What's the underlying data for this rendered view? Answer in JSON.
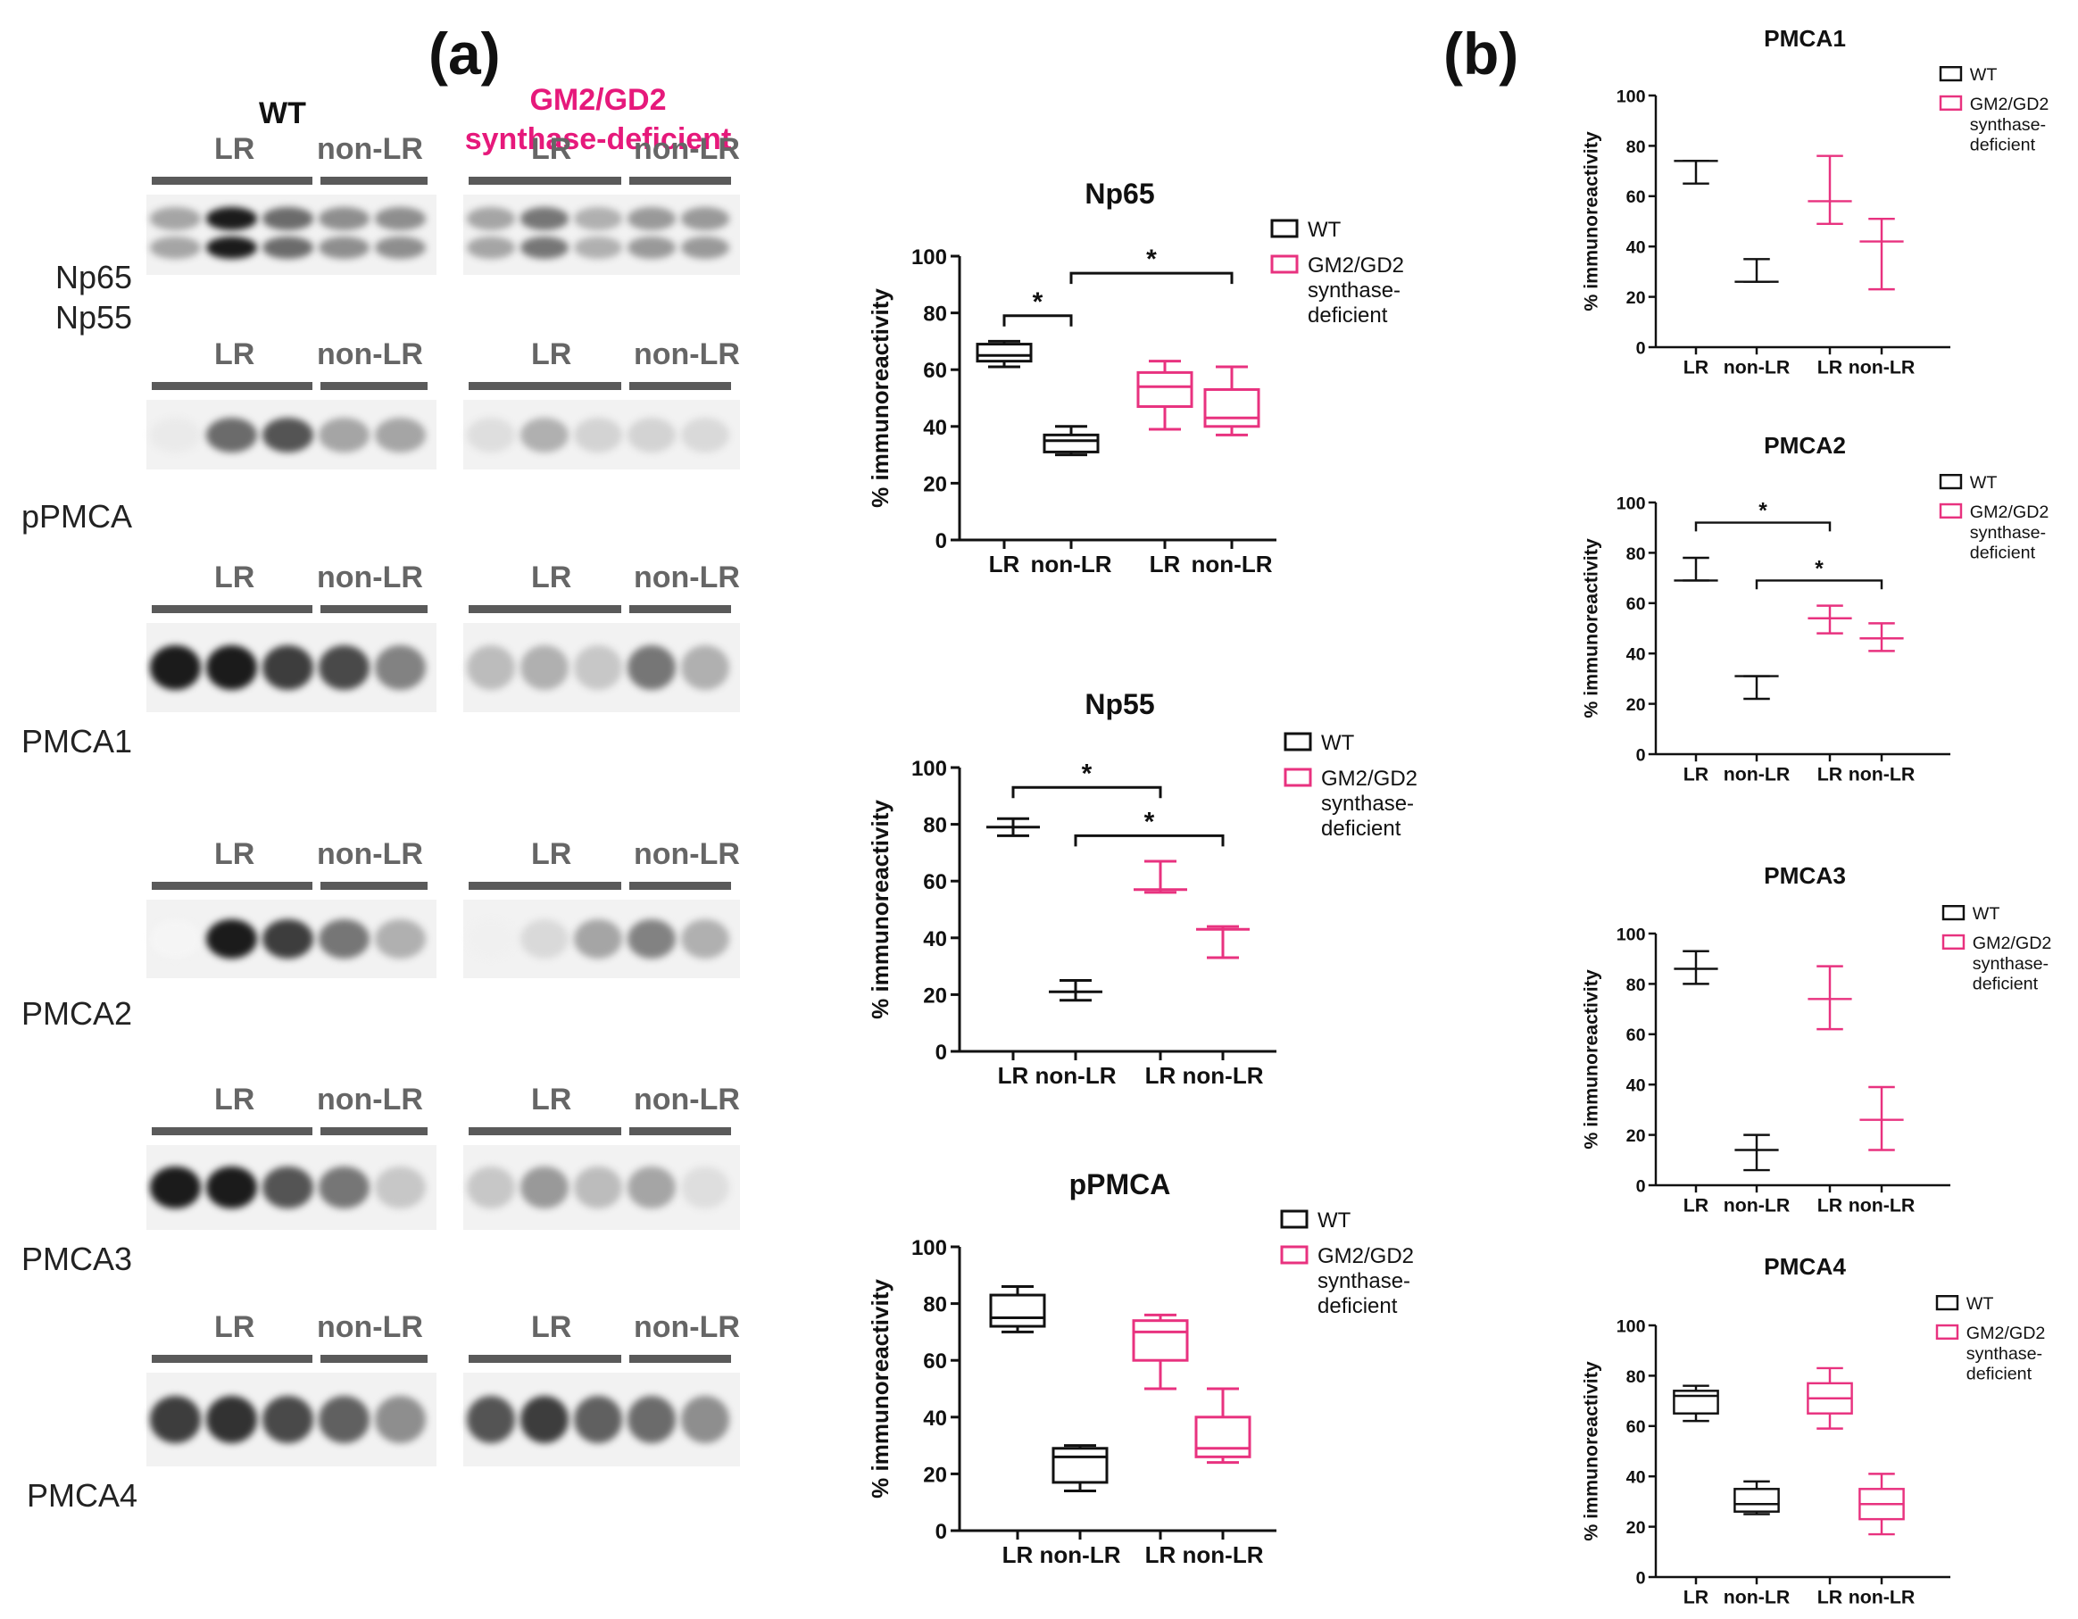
{
  "panel_a_letter": "(a)",
  "panel_b_letter": "(b)",
  "blot_headers": {
    "wt": "WT",
    "ko_line1": "GM2/GD2",
    "ko_line2": "synthase-deficient"
  },
  "blot_lane_labels": {
    "lr": "LR",
    "nonlr": "non-LR"
  },
  "blot_rows": [
    {
      "labels": [
        "Np65",
        "Np55"
      ]
    },
    {
      "labels": [
        "pPMCA"
      ]
    },
    {
      "labels": [
        "PMCA1"
      ]
    },
    {
      "labels": [
        "PMCA2"
      ]
    },
    {
      "labels": [
        "PMCA3"
      ]
    },
    {
      "labels": [
        "PMCA4"
      ]
    }
  ],
  "legend": {
    "wt": "WT",
    "ko_line1": "GM2/GD2",
    "ko_line2": "synthase-",
    "ko_line3": "deficient"
  },
  "colors": {
    "wt": "#111111",
    "ko": "#e8327f",
    "ko_text": "#e6197b",
    "bar": "#5a5a5a"
  },
  "chart_data": [
    {
      "id": "np65",
      "type": "box",
      "title": "Np65",
      "ylabel": "% immunoreactivity",
      "ylim": [
        0,
        100
      ],
      "yticks": [
        0,
        20,
        40,
        60,
        80,
        100
      ],
      "categories": [
        "LR",
        "non-LR",
        "LR",
        "non-LR"
      ],
      "groups": [
        "WT",
        "WT",
        "GM2/GD2 synthase-deficient",
        "GM2/GD2 synthase-deficient"
      ],
      "boxes": [
        {
          "min": 61,
          "q1": 63,
          "median": 65,
          "q3": 69,
          "max": 70
        },
        {
          "min": 30,
          "q1": 31,
          "median": 35,
          "q3": 37,
          "max": 40
        },
        {
          "min": 39,
          "q1": 47,
          "median": 54,
          "q3": 59,
          "max": 63
        },
        {
          "min": 37,
          "q1": 40,
          "median": 43,
          "q3": 53,
          "max": 61
        }
      ],
      "significance": [
        {
          "from": 0,
          "to": 1,
          "y": 79,
          "label": "*"
        },
        {
          "from": 1,
          "to": 3,
          "y": 94,
          "label": "*"
        }
      ]
    },
    {
      "id": "np55",
      "type": "range",
      "title": "Np55",
      "ylabel": "% immunoreactivity",
      "ylim": [
        0,
        100
      ],
      "yticks": [
        0,
        20,
        40,
        60,
        80,
        100
      ],
      "categories": [
        "LR",
        "non-LR",
        "LR",
        "non-LR"
      ],
      "groups": [
        "WT",
        "WT",
        "GM2/GD2 synthase-deficient",
        "GM2/GD2 synthase-deficient"
      ],
      "ranges": [
        {
          "min": 76,
          "mid": 79,
          "max": 82
        },
        {
          "min": 18,
          "mid": 21,
          "max": 25
        },
        {
          "min": 56,
          "mid": 57,
          "max": 67
        },
        {
          "min": 33,
          "mid": 43,
          "max": 44
        }
      ],
      "significance": [
        {
          "from": 0,
          "to": 2,
          "y": 93,
          "label": "*"
        },
        {
          "from": 1,
          "to": 3,
          "y": 76,
          "label": "*"
        }
      ]
    },
    {
      "id": "ppmca",
      "type": "box",
      "title": "pPMCA",
      "ylabel": "% immunoreactivity",
      "ylim": [
        0,
        100
      ],
      "yticks": [
        0,
        20,
        40,
        60,
        80,
        100
      ],
      "categories": [
        "LR",
        "non-LR",
        "LR",
        "non-LR"
      ],
      "groups": [
        "WT",
        "WT",
        "GM2/GD2 synthase-deficient",
        "GM2/GD2 synthase-deficient"
      ],
      "boxes": [
        {
          "min": 70,
          "q1": 72,
          "median": 75,
          "q3": 83,
          "max": 86
        },
        {
          "min": 14,
          "q1": 17,
          "median": 26,
          "q3": 29,
          "max": 30
        },
        {
          "min": 50,
          "q1": 60,
          "median": 70,
          "q3": 74,
          "max": 76
        },
        {
          "min": 24,
          "q1": 26,
          "median": 29,
          "q3": 40,
          "max": 50
        }
      ],
      "significance": []
    },
    {
      "id": "pmca1",
      "type": "range",
      "title": "PMCA1",
      "ylabel": "% immunoreactivity",
      "ylim": [
        0,
        100
      ],
      "yticks": [
        0,
        20,
        40,
        60,
        80,
        100
      ],
      "categories": [
        "LR",
        "non-LR",
        "LR",
        "non-LR"
      ],
      "groups": [
        "WT",
        "WT",
        "GM2/GD2 synthase-deficient",
        "GM2/GD2 synthase-deficient"
      ],
      "ranges": [
        {
          "min": 65,
          "mid": 74,
          "max": 74
        },
        {
          "min": 26,
          "mid": 26,
          "max": 35
        },
        {
          "min": 49,
          "mid": 58,
          "max": 76
        },
        {
          "min": 23,
          "mid": 42,
          "max": 51
        }
      ],
      "significance": []
    },
    {
      "id": "pmca2",
      "type": "range",
      "title": "PMCA2",
      "ylabel": "% immunoreactivity",
      "ylim": [
        0,
        100
      ],
      "yticks": [
        0,
        20,
        40,
        60,
        80,
        100
      ],
      "categories": [
        "LR",
        "non-LR",
        "LR",
        "non-LR"
      ],
      "groups": [
        "WT",
        "WT",
        "GM2/GD2 synthase-deficient",
        "GM2/GD2 synthase-deficient"
      ],
      "ranges": [
        {
          "min": 69,
          "mid": 69,
          "max": 78
        },
        {
          "min": 22,
          "mid": 31,
          "max": 31
        },
        {
          "min": 48,
          "mid": 54,
          "max": 59
        },
        {
          "min": 41,
          "mid": 46,
          "max": 52
        }
      ],
      "significance": [
        {
          "from": 0,
          "to": 2,
          "y": 92,
          "label": "*"
        },
        {
          "from": 1,
          "to": 3,
          "y": 69,
          "label": "*"
        }
      ]
    },
    {
      "id": "pmca3",
      "type": "range",
      "title": "PMCA3",
      "ylabel": "% immunoreactivity",
      "ylim": [
        0,
        100
      ],
      "yticks": [
        0,
        20,
        40,
        60,
        80,
        100
      ],
      "categories": [
        "LR",
        "non-LR",
        "LR",
        "non-LR"
      ],
      "groups": [
        "WT",
        "WT",
        "GM2/GD2 synthase-deficient",
        "GM2/GD2 synthase-deficient"
      ],
      "ranges": [
        {
          "min": 80,
          "mid": 86,
          "max": 93
        },
        {
          "min": 6,
          "mid": 14,
          "max": 20
        },
        {
          "min": 62,
          "mid": 74,
          "max": 87
        },
        {
          "min": 14,
          "mid": 26,
          "max": 39
        }
      ],
      "significance": []
    },
    {
      "id": "pmca4",
      "type": "box",
      "title": "PMCA4",
      "ylabel": "% immunoreactivity",
      "ylim": [
        0,
        100
      ],
      "yticks": [
        0,
        20,
        40,
        60,
        80,
        100
      ],
      "categories": [
        "LR",
        "non-LR",
        "LR",
        "non-LR"
      ],
      "groups": [
        "WT",
        "WT",
        "GM2/GD2 synthase-deficient",
        "GM2/GD2 synthase-deficient"
      ],
      "boxes": [
        {
          "min": 62,
          "q1": 65,
          "median": 72,
          "q3": 74,
          "max": 76
        },
        {
          "min": 25,
          "q1": 26,
          "median": 29,
          "q3": 35,
          "max": 38
        },
        {
          "min": 59,
          "q1": 65,
          "median": 71,
          "q3": 77,
          "max": 83
        },
        {
          "min": 17,
          "q1": 23,
          "median": 29,
          "q3": 35,
          "max": 41
        }
      ],
      "significance": []
    }
  ]
}
